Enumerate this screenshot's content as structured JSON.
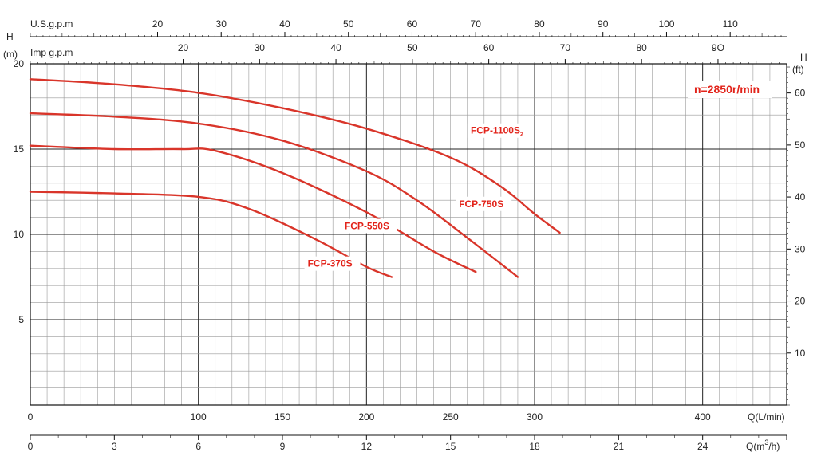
{
  "chart_data": {
    "type": "line",
    "colors": {
      "curve": "#d9352a",
      "label": "#e2231a",
      "grid_minor": "#9a9a9a",
      "grid_major": "#222222"
    },
    "grid": true,
    "speed_label": "n=2850r/min",
    "axes": {
      "left": {
        "label_top": "H",
        "label_unit": "(m)",
        "range": [
          0,
          20
        ],
        "ticks": [
          "5",
          "10",
          "15",
          "20"
        ],
        "tick_values": [
          5,
          10,
          15,
          20
        ]
      },
      "right": {
        "label_top": "H",
        "label_unit": "(ft)",
        "range": [
          0,
          65.6
        ],
        "ticks": [
          "10",
          "20",
          "30",
          "40",
          "50",
          "60"
        ],
        "tick_values": [
          10,
          20,
          30,
          40,
          50,
          60
        ]
      },
      "bottom_lmin": {
        "label": "Q(L/min)",
        "range": [
          0,
          450
        ],
        "ticks": [
          "0",
          "100",
          "150",
          "200",
          "250",
          "300",
          "400"
        ],
        "tick_values": [
          0,
          100,
          150,
          200,
          250,
          300,
          400
        ]
      },
      "bottom_m3h": {
        "label_prefix": "Q(m",
        "label_sup": "3",
        "label_suffix": "/h)",
        "range": [
          0,
          27
        ],
        "ticks": [
          "0",
          "3",
          "6",
          "9",
          "12",
          "15",
          "18",
          "21",
          "24"
        ],
        "tick_values": [
          0,
          3,
          6,
          9,
          12,
          15,
          18,
          21,
          24
        ]
      },
      "top_usgpm": {
        "label": "U.S.g.p.m",
        "range": [
          0,
          118.9
        ],
        "ticks": [
          "20",
          "30",
          "40",
          "50",
          "60",
          "70",
          "80",
          "90",
          "100",
          "110"
        ],
        "tick_values": [
          20,
          30,
          40,
          50,
          60,
          70,
          80,
          90,
          100,
          110
        ]
      },
      "top_impgpm": {
        "label": "Imp g.p.m",
        "range": [
          0,
          99
        ],
        "ticks": [
          "20",
          "30",
          "40",
          "50",
          "60",
          "70",
          "80",
          "9O"
        ],
        "tick_values": [
          20,
          30,
          40,
          50,
          60,
          70,
          80,
          90
        ]
      }
    },
    "series": [
      {
        "name": "FCP-1100S",
        "name_sub": "2",
        "label_x": 262,
        "label_h": 15.9,
        "points": [
          [
            0,
            19.1
          ],
          [
            50,
            18.8
          ],
          [
            100,
            18.3
          ],
          [
            150,
            17.4
          ],
          [
            200,
            16.2
          ],
          [
            250,
            14.5
          ],
          [
            280,
            12.8
          ],
          [
            300,
            11.2
          ],
          [
            315,
            10.1
          ]
        ]
      },
      {
        "name": "FCP-750S",
        "name_sub": "",
        "label_x": 255,
        "label_h": 11.6,
        "points": [
          [
            0,
            17.1
          ],
          [
            50,
            16.9
          ],
          [
            100,
            16.5
          ],
          [
            150,
            15.5
          ],
          [
            200,
            13.7
          ],
          [
            230,
            12.0
          ],
          [
            260,
            9.8
          ],
          [
            290,
            7.5
          ]
        ]
      },
      {
        "name": "FCP-550S",
        "name_sub": "",
        "label_x": 187,
        "label_h": 10.3,
        "points": [
          [
            0,
            15.2
          ],
          [
            50,
            15.0
          ],
          [
            90,
            15.0
          ],
          [
            110,
            14.9
          ],
          [
            150,
            13.6
          ],
          [
            200,
            11.3
          ],
          [
            240,
            9.0
          ],
          [
            265,
            7.8
          ]
        ]
      },
      {
        "name": "FCP-370S",
        "name_sub": "",
        "label_x": 165,
        "label_h": 8.1,
        "points": [
          [
            0,
            12.5
          ],
          [
            50,
            12.4
          ],
          [
            100,
            12.2
          ],
          [
            130,
            11.5
          ],
          [
            170,
            9.7
          ],
          [
            200,
            8.1
          ],
          [
            215,
            7.5
          ]
        ]
      }
    ]
  }
}
